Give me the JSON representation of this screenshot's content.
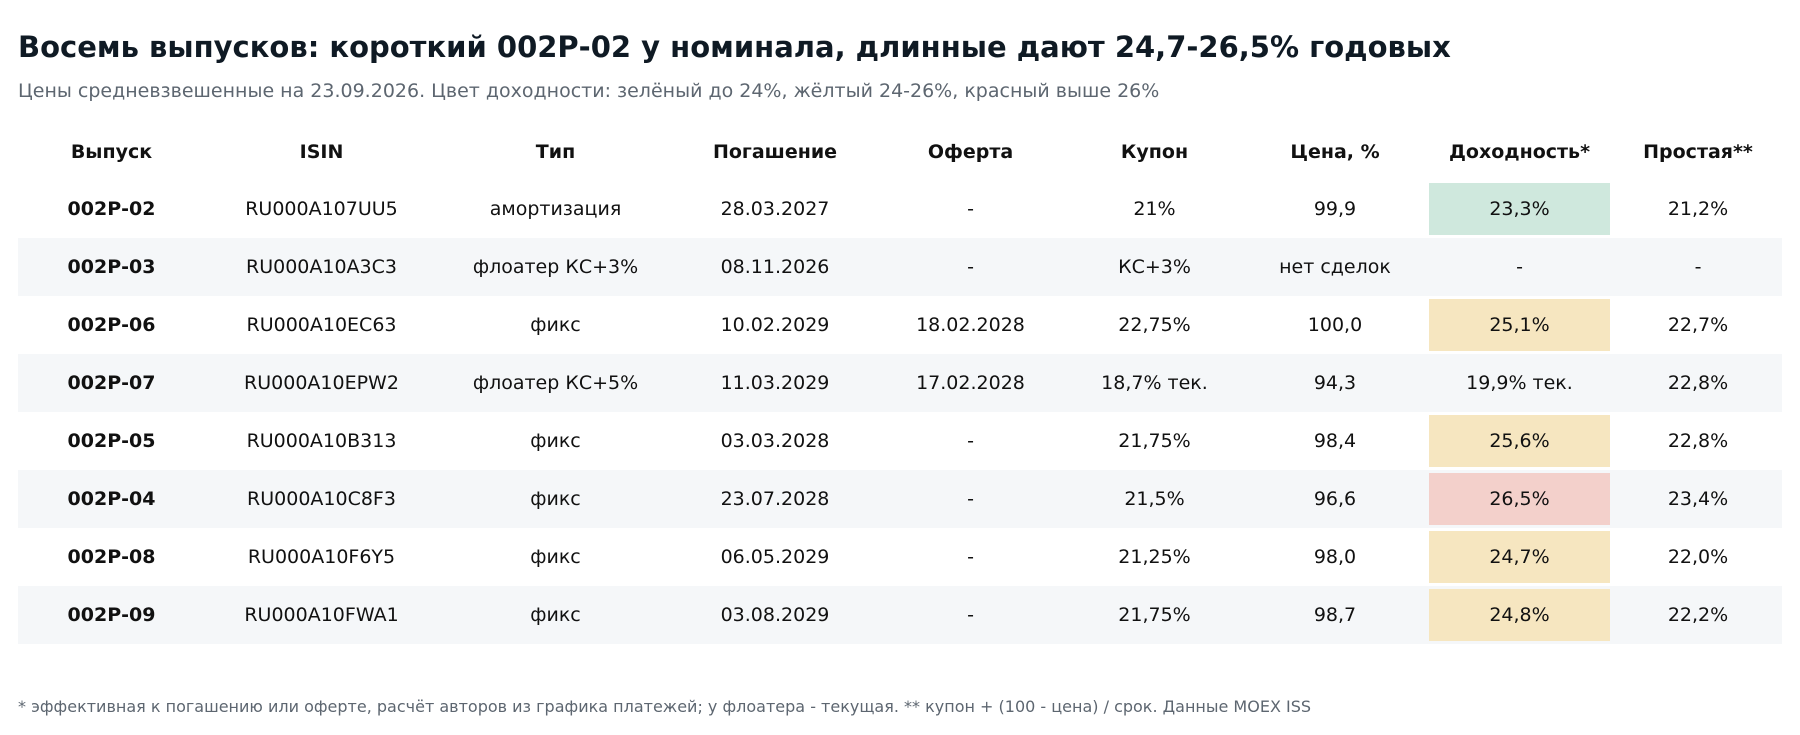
{
  "header": {
    "title": "Восемь выпусков: короткий 002Р-02 у номинала, длинные дают 24,7-26,5% годовых",
    "subtitle": "Цены средневзвешенные на 23.09.2026. Цвет доходности: зелёный до 24%, жёлтый 24-26%, красный выше 26%"
  },
  "table": {
    "columns": [
      "Выпуск",
      "ISIN",
      "Тип",
      "Погашение",
      "Оферта",
      "Купон",
      "Цена, %",
      "Доходность*",
      "Простая**"
    ],
    "rows": [
      [
        "002Р-02",
        "RU000A107UU5",
        "амортизация",
        "28.03.2027",
        "-",
        "21%",
        "99,9",
        "23,3%",
        "21,2%"
      ],
      [
        "002Р-03",
        "RU000A10A3C3",
        "флоатер КС+3%",
        "08.11.2026",
        "-",
        "КС+3%",
        "нет сделок",
        "-",
        "-"
      ],
      [
        "002Р-06",
        "RU000A10EC63",
        "фикс",
        "10.02.2029",
        "18.02.2028",
        "22,75%",
        "100,0",
        "25,1%",
        "22,7%"
      ],
      [
        "002Р-07",
        "RU000A10EPW2",
        "флоатер КС+5%",
        "11.03.2029",
        "17.02.2028",
        "18,7% тек.",
        "94,3",
        "19,9% тек.",
        "22,8%"
      ],
      [
        "002Р-05",
        "RU000A10B313",
        "фикс",
        "03.03.2028",
        "-",
        "21,75%",
        "98,4",
        "25,6%",
        "22,8%"
      ],
      [
        "002Р-04",
        "RU000A10C8F3",
        "фикс",
        "23.07.2028",
        "-",
        "21,5%",
        "96,6",
        "26,5%",
        "23,4%"
      ],
      [
        "002Р-08",
        "RU000A10F6Y5",
        "фикс",
        "06.05.2029",
        "-",
        "21,25%",
        "98,0",
        "24,7%",
        "22,0%"
      ],
      [
        "002Р-09",
        "RU000A10FWA1",
        "фикс",
        "03.08.2029",
        "-",
        "21,75%",
        "98,7",
        "24,8%",
        "22,2%"
      ]
    ],
    "yield_colors": [
      "#cfe8dd",
      null,
      "#f6e6c0",
      null,
      "#f6e6c0",
      "#f3d0cb",
      "#f6e6c0",
      "#f6e6c0"
    ]
  },
  "footer": "* эффективная к погашению или оферте, расчёт авторов из графика платежей; у флоатера - текущая. ** купон + (100 - цена) / срок. Данные MOEX ISS"
}
